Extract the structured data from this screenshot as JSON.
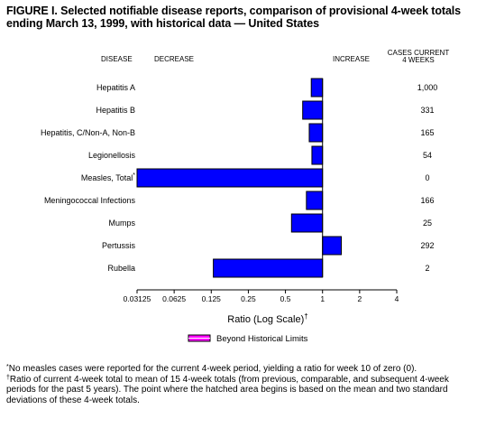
{
  "title": "FIGURE I. Selected notifiable disease reports, comparison of provisional 4-week totals ending March 13, 1999, with historical data — United States",
  "headers": {
    "disease": "DISEASE",
    "decrease": "DECREASE",
    "increase": "INCREASE",
    "cases_current_line1": "CASES CURRENT",
    "cases_current_line2": "4 WEEKS"
  },
  "colors": {
    "bar": "#0000ff",
    "bar_outline": "#000000",
    "legend_fill": "#ff00ff"
  },
  "chart_data": {
    "type": "bar",
    "orientation": "horizontal",
    "xscale": "log2",
    "xlim": [
      0.03125,
      4
    ],
    "reference_line": 1,
    "xlabel": "Ratio (Log Scale)",
    "xlabel_mark": "†",
    "xticks": [
      0.03125,
      0.0625,
      0.125,
      0.25,
      0.5,
      1,
      2,
      4
    ],
    "xtick_labels": [
      "0.03125",
      "0.0625",
      "0.125",
      "0.25",
      "0.5",
      "1",
      "2",
      "4"
    ],
    "categories": [
      "Hepatitis A",
      "Hepatitis B",
      "Hepatitis, C/Non-A, Non-B",
      "Legionellosis",
      "Measles, Total",
      "Meningococcal Infections",
      "Mumps",
      "Pertussis",
      "Rubella"
    ],
    "category_marks": [
      "",
      "",
      "",
      "",
      "*",
      "",
      "",
      "",
      ""
    ],
    "values": [
      0.81,
      0.69,
      0.78,
      0.82,
      0.03125,
      0.74,
      0.56,
      1.42,
      0.13
    ],
    "cases_current_4_weeks": [
      "1,000",
      "331",
      "165",
      "54",
      "0",
      "166",
      "25",
      "292",
      "2"
    ],
    "legend": "Beyond Historical Limits"
  },
  "footnotes": {
    "note1_mark": "*",
    "note1": "No measles cases were reported for the current 4-week period, yielding a ratio for week 10 of zero (0).",
    "note2_mark": "†",
    "note2": "Ratio of current 4-week total to mean of 15 4-week totals (from previous, comparable, and subsequent 4-week periods for the past 5 years). The point where the hatched area begins is based on the mean and two standard deviations of these 4-week totals."
  }
}
